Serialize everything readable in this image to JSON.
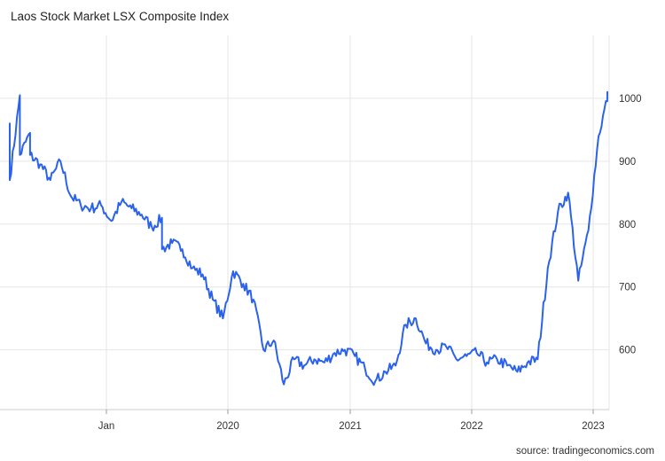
{
  "header": {
    "title": "Laos Stock Market LSX Composite Index"
  },
  "footer": {
    "source": "source: tradingeconomics.com"
  },
  "chart_data": {
    "type": "line",
    "title": "Laos Stock Market LSX Composite Index",
    "xlabel": "",
    "ylabel": "",
    "x_tick_labels": [
      "Jan",
      "2020",
      "2021",
      "2022",
      "2023"
    ],
    "y_ticks": [
      600,
      700,
      800,
      900,
      1000
    ],
    "ylim": [
      505,
      1100
    ],
    "grid": true,
    "y_axis_side": "right",
    "line_color": "#2b62ec",
    "series": [
      {
        "x": [
          "2018-03",
          "2018-03",
          "2018-04",
          "2018-04",
          "2018-05",
          "2018-05",
          "2018-06",
          "2018-07",
          "2018-08",
          "2018-09",
          "2018-10",
          "2018-11",
          "2018-12",
          "2019-01",
          "2019-02",
          "2019-03",
          "2019-04",
          "2019-05",
          "2019-06",
          "2019-06",
          "2019-07",
          "2019-08",
          "2019-09",
          "2019-10",
          "2019-11",
          "2019-12",
          "2020-01",
          "2020-02",
          "2020-03",
          "2020-04",
          "2020-05",
          "2020-06",
          "2020-07",
          "2020-08",
          "2020-09",
          "2020-10",
          "2020-11",
          "2020-12",
          "2021-01",
          "2021-02",
          "2021-03",
          "2021-04",
          "2021-05",
          "2021-06",
          "2021-07",
          "2021-08",
          "2021-09",
          "2021-10",
          "2021-11",
          "2021-12",
          "2022-01",
          "2022-02",
          "2022-03",
          "2022-04",
          "2022-05",
          "2022-06",
          "2022-07",
          "2022-08",
          "2022-09",
          "2022-10",
          "2022-11",
          "2022-12",
          "2023-01",
          "2023-02"
        ],
        "values": [
          960,
          870,
          1005,
          910,
          945,
          910,
          895,
          870,
          900,
          845,
          830,
          825,
          830,
          805,
          835,
          825,
          815,
          795,
          810,
          760,
          770,
          760,
          730,
          720,
          680,
          650,
          725,
          705,
          680,
          600,
          615,
          545,
          585,
          575,
          585,
          580,
          595,
          600,
          590,
          570,
          550,
          565,
          575,
          640,
          650,
          610,
          600,
          605,
          585,
          590,
          595,
          580,
          585,
          575,
          565,
          580,
          585,
          730,
          820,
          850,
          710,
          790,
          940,
          1010
        ]
      }
    ]
  }
}
